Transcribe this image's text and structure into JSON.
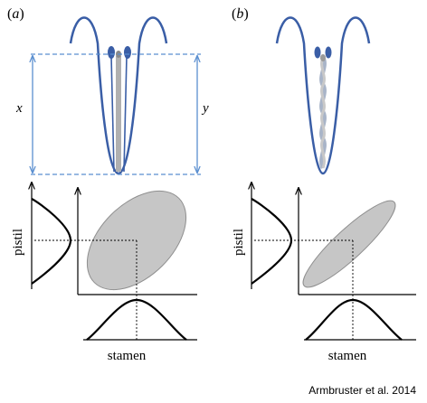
{
  "panels": [
    {
      "label": "(a)",
      "label_paren_open": "(",
      "label_letter": "a",
      "label_paren_close": ")",
      "x_label": "x",
      "y_label": "y",
      "pistil_axis": "pistil",
      "stamen_axis": "stamen"
    },
    {
      "label": "(b)",
      "label_paren_open": "(",
      "label_letter": "b",
      "label_paren_close": ")",
      "pistil_axis": "pistil",
      "stamen_axis": "stamen"
    }
  ],
  "citation": "Armbruster et al. 2014",
  "colors": {
    "flower_outline": "#3a5ea6",
    "measure_line": "#5b8fd0",
    "ellipse_fill": "#c6c6c6",
    "ellipse_stroke": "#8f8f8f",
    "axis": "#000000",
    "style_column": "#b0b0b0"
  }
}
